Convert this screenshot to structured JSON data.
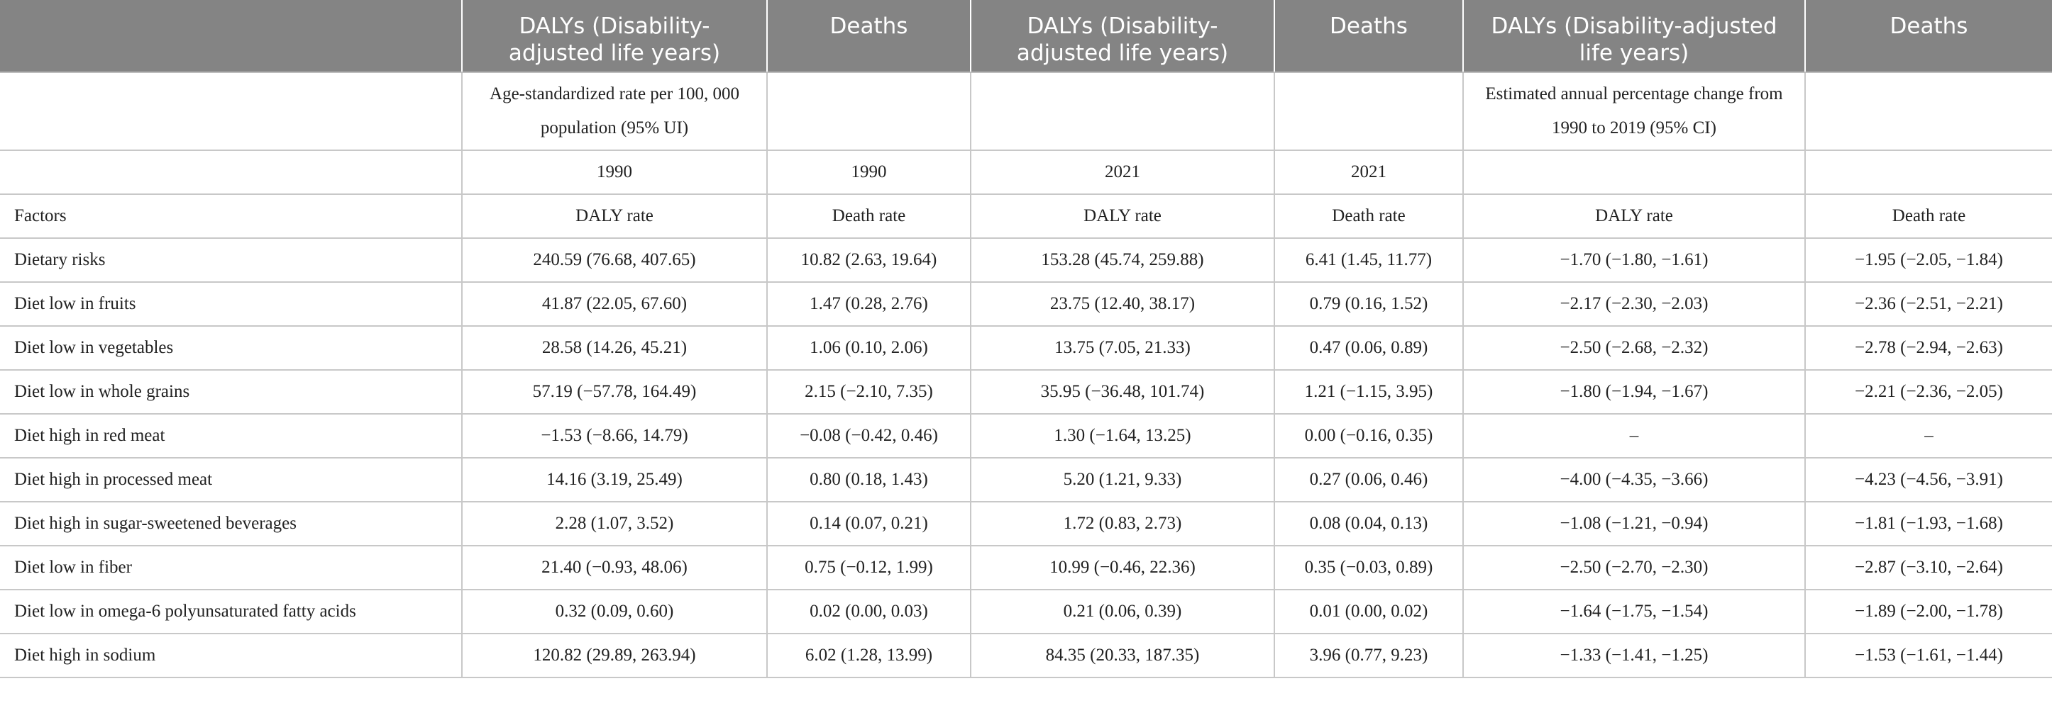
{
  "headers": [
    "",
    "DALYs (Disability-adjusted life years)",
    "Deaths",
    "DALYs (Disability-adjusted life years)",
    "Deaths",
    "DALYs (Disability-adjusted life years)",
    "Deaths"
  ],
  "subheader": {
    "rate_label": "Age-standardized rate per 100, 000 population (95% UI)",
    "change_label": "Estimated annual percentage change from 1990 to 2019 (95% CI)"
  },
  "years": [
    "1990",
    "1990",
    "2021",
    "2021"
  ],
  "metric_row": {
    "label": "Factors",
    "values": [
      "DALY rate",
      "Death rate",
      "DALY rate",
      "Death rate",
      "DALY rate",
      "Death rate"
    ]
  },
  "rows": [
    {
      "factor": "Dietary risks",
      "values": [
        "240.59 (76.68, 407.65)",
        "10.82 (2.63, 19.64)",
        "153.28 (45.74, 259.88)",
        "6.41 (1.45, 11.77)",
        "−1.70 (−1.80, −1.61)",
        "−1.95 (−2.05, −1.84)"
      ]
    },
    {
      "factor": "Diet low in fruits",
      "values": [
        "41.87 (22.05, 67.60)",
        "1.47 (0.28, 2.76)",
        "23.75 (12.40, 38.17)",
        "0.79 (0.16, 1.52)",
        "−2.17 (−2.30, −2.03)",
        "−2.36 (−2.51, −2.21)"
      ]
    },
    {
      "factor": "Diet low in vegetables",
      "values": [
        "28.58 (14.26, 45.21)",
        "1.06 (0.10, 2.06)",
        "13.75 (7.05, 21.33)",
        "0.47 (0.06, 0.89)",
        "−2.50 (−2.68, −2.32)",
        "−2.78 (−2.94, −2.63)"
      ]
    },
    {
      "factor": "Diet low in whole grains",
      "values": [
        "57.19 (−57.78, 164.49)",
        "2.15 (−2.10, 7.35)",
        "35.95 (−36.48, 101.74)",
        "1.21 (−1.15, 3.95)",
        "−1.80 (−1.94, −1.67)",
        "−2.21 (−2.36, −2.05)"
      ]
    },
    {
      "factor": "Diet high in red meat",
      "values": [
        "−1.53 (−8.66, 14.79)",
        "−0.08 (−0.42, 0.46)",
        "1.30 (−1.64, 13.25)",
        "0.00 (−0.16, 0.35)",
        "–",
        "–"
      ]
    },
    {
      "factor": "Diet high in processed meat",
      "values": [
        "14.16 (3.19, 25.49)",
        "0.80 (0.18, 1.43)",
        "5.20 (1.21, 9.33)",
        "0.27 (0.06, 0.46)",
        "−4.00 (−4.35, −3.66)",
        "−4.23 (−4.56, −3.91)"
      ]
    },
    {
      "factor": "Diet high in sugar-sweetened beverages",
      "values": [
        "2.28 (1.07, 3.52)",
        "0.14 (0.07, 0.21)",
        "1.72 (0.83, 2.73)",
        "0.08 (0.04, 0.13)",
        "−1.08 (−1.21, −0.94)",
        "−1.81 (−1.93, −1.68)"
      ]
    },
    {
      "factor": "Diet low in fiber",
      "values": [
        "21.40 (−0.93, 48.06)",
        "0.75 (−0.12, 1.99)",
        "10.99 (−0.46, 22.36)",
        "0.35 (−0.03, 0.89)",
        "−2.50 (−2.70, −2.30)",
        "−2.87 (−3.10, −2.64)"
      ]
    },
    {
      "factor": "Diet low in omega-6 polyunsaturated fatty acids",
      "values": [
        "0.32 (0.09, 0.60)",
        "0.02 (0.00, 0.03)",
        "0.21 (0.06, 0.39)",
        "0.01 (0.00, 0.02)",
        "−1.64 (−1.75, −1.54)",
        "−1.89 (−2.00, −1.78)"
      ]
    },
    {
      "factor": "Diet high in sodium",
      "values": [
        "120.82 (29.89, 263.94)",
        "6.02 (1.28, 13.99)",
        "84.35 (20.33, 187.35)",
        "3.96 (0.77, 9.23)",
        "−1.33 (−1.41, −1.25)",
        "−1.53 (−1.61, −1.44)"
      ]
    }
  ]
}
